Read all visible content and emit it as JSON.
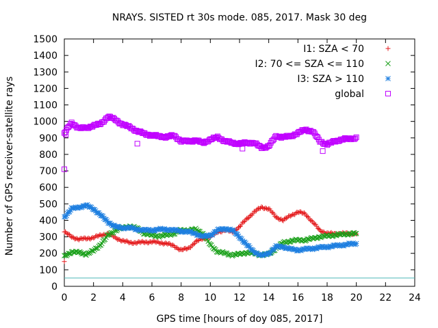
{
  "chart_data": {
    "type": "scatter",
    "title": "NRAYS. SISTED rt 30s mode. 085, 2017. Mask 30 deg",
    "xlabel": "GPS time [hours of doy 085, 2017]",
    "ylabel": "Number of GPS receiver-satellite rays",
    "xlim": [
      0,
      24
    ],
    "ylim": [
      0,
      1500
    ],
    "xticks": [
      0,
      2,
      4,
      6,
      8,
      10,
      12,
      14,
      16,
      18,
      20,
      22,
      24
    ],
    "yticks": [
      0,
      100,
      200,
      300,
      400,
      500,
      600,
      700,
      800,
      900,
      1000,
      1100,
      1200,
      1300,
      1400,
      1500
    ],
    "grid": false,
    "legend_position": "top-right",
    "reference_line": {
      "y": 50,
      "color": "#4bb8b8"
    },
    "series": [
      {
        "name": "I1: SZA < 70",
        "marker": "plus",
        "color": "#e41a1c",
        "x": [
          0,
          0.5,
          1,
          1.5,
          2,
          2.5,
          3,
          3.5,
          4,
          4.5,
          5,
          5.5,
          6,
          6.5,
          7,
          7.5,
          8,
          8.5,
          9,
          9.5,
          10,
          10.5,
          11,
          11.5,
          12,
          12.5,
          13,
          13.5,
          14,
          14.5,
          15,
          15.5,
          16,
          16.5,
          17,
          17.5,
          18,
          18.5,
          19,
          19.5,
          20
        ],
        "y": [
          330,
          300,
          285,
          290,
          295,
          310,
          320,
          295,
          275,
          265,
          265,
          268,
          270,
          265,
          260,
          245,
          220,
          230,
          270,
          290,
          300,
          330,
          340,
          330,
          360,
          410,
          450,
          480,
          470,
          420,
          400,
          430,
          450,
          440,
          390,
          340,
          320,
          320,
          320,
          320,
          320
        ]
      },
      {
        "name": "I2: 70 <= SZA <= 110",
        "marker": "cross",
        "color": "#1aa01a",
        "x": [
          0,
          0.5,
          1,
          1.5,
          2,
          2.5,
          3,
          3.5,
          4,
          4.5,
          5,
          5.5,
          6,
          6.5,
          7,
          7.5,
          8,
          8.5,
          9,
          9.5,
          10,
          10.5,
          11,
          11.5,
          12,
          12.5,
          13,
          13.5,
          14,
          14.5,
          15,
          15.5,
          16,
          16.5,
          17,
          17.5,
          18,
          18.5,
          19,
          19.5,
          20
        ],
        "y": [
          180,
          210,
          205,
          195,
          215,
          255,
          310,
          340,
          355,
          365,
          350,
          320,
          310,
          305,
          310,
          320,
          340,
          340,
          345,
          320,
          250,
          210,
          200,
          190,
          195,
          205,
          200,
          190,
          195,
          230,
          265,
          275,
          280,
          280,
          290,
          300,
          305,
          310,
          315,
          318,
          320
        ]
      },
      {
        "name": "I3: SZA > 110",
        "marker": "star",
        "color": "#1e7fe0",
        "x": [
          0,
          0.5,
          1,
          1.5,
          2,
          2.5,
          3,
          3.5,
          4,
          4.5,
          5,
          5.5,
          6,
          6.5,
          7,
          7.5,
          8,
          8.5,
          9,
          9.5,
          10,
          10.5,
          11,
          11.5,
          12,
          12.5,
          13,
          13.5,
          14,
          14.5,
          15,
          15.5,
          16,
          16.5,
          17,
          17.5,
          18,
          18.5,
          19,
          19.5,
          20
        ],
        "y": [
          420,
          470,
          480,
          490,
          470,
          430,
          390,
          360,
          355,
          355,
          345,
          340,
          340,
          345,
          345,
          340,
          335,
          330,
          320,
          300,
          310,
          340,
          350,
          340,
          300,
          250,
          210,
          185,
          200,
          240,
          240,
          225,
          220,
          225,
          230,
          235,
          240,
          245,
          250,
          255,
          260
        ]
      },
      {
        "name": "global",
        "marker": "square",
        "color": "#c000ff",
        "x": [
          0,
          0.5,
          1,
          1.5,
          2,
          2.5,
          3,
          3.5,
          4,
          4.5,
          5,
          5.5,
          6,
          6.5,
          7,
          7.5,
          8,
          8.5,
          9,
          9.5,
          10,
          10.5,
          11,
          11.5,
          12,
          12.5,
          13,
          13.5,
          14,
          14.5,
          15,
          15.5,
          16,
          16.5,
          17,
          17.5,
          18,
          18.5,
          19,
          19.5,
          20
        ],
        "y": [
          930,
          990,
          960,
          960,
          975,
          985,
          1030,
          1010,
          980,
          965,
          940,
          925,
          915,
          910,
          905,
          915,
          880,
          880,
          885,
          870,
          890,
          905,
          880,
          870,
          865,
          870,
          870,
          840,
          850,
          910,
          905,
          910,
          930,
          950,
          940,
          880,
          860,
          880,
          890,
          895,
          900
        ]
      }
    ],
    "outliers": [
      {
        "series": 0,
        "x": 0,
        "y": 150
      },
      {
        "series": 3,
        "x": 0,
        "y": 710
      },
      {
        "series": 3,
        "x": 0.1,
        "y": 920
      },
      {
        "series": 3,
        "x": 5,
        "y": 865
      },
      {
        "series": 3,
        "x": 12.2,
        "y": 835
      },
      {
        "series": 3,
        "x": 17.7,
        "y": 820
      }
    ]
  }
}
